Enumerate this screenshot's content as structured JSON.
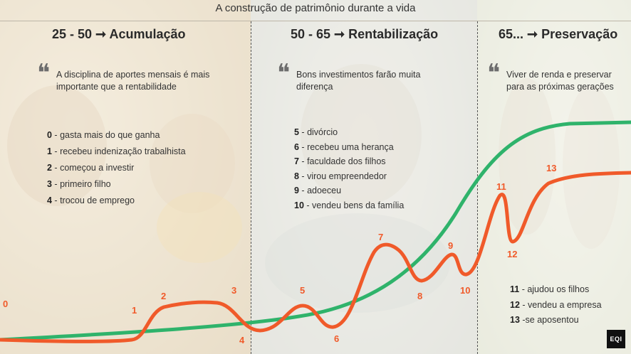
{
  "title": "A construção de patrimônio durante a vida",
  "phases": [
    {
      "title": "25 - 50 ➞ Acumulação",
      "quote": "A disciplina de aportes mensais é mais importante que a rentabilidade",
      "events": [
        {
          "num": "0",
          "text": "gasta mais do que ganha"
        },
        {
          "num": "1",
          "text": "recebeu indenização trabalhista"
        },
        {
          "num": "2",
          "text": "começou a investir"
        },
        {
          "num": "3",
          "text": "primeiro filho"
        },
        {
          "num": "4",
          "text": "trocou de emprego"
        }
      ]
    },
    {
      "title": "50 - 65 ➞ Rentabilização",
      "quote": "Bons investimentos farão muita diferença",
      "events": [
        {
          "num": "5",
          "text": "divórcio"
        },
        {
          "num": "6",
          "text": "recebeu uma herança"
        },
        {
          "num": "7",
          "text": "faculdade dos filhos"
        },
        {
          "num": "8",
          "text": "virou empreendedor"
        },
        {
          "num": "9",
          "text": "adoeceu"
        },
        {
          "num": "10",
          "text": " vendeu bens da família"
        }
      ]
    },
    {
      "title": "65... ➞ Preservação",
      "quote": "Viver de renda e preservar para as próximas gerações",
      "events": [
        {
          "num": "11",
          "text": "ajudou os filhos"
        },
        {
          "num": "12",
          "text": "vendeu a empresa"
        },
        {
          "num": "13",
          "text": "se aposentou"
        }
      ]
    }
  ],
  "curve_labels": [
    "0",
    "1",
    "2",
    "3",
    "4",
    "5",
    "6",
    "7",
    "8",
    "9",
    "10",
    "11",
    "12",
    "13"
  ],
  "colors": {
    "ideal_curve": "#2fb36b",
    "real_curve": "#f05a2a",
    "labels": "#f05a2a"
  },
  "logo": "EQI"
}
